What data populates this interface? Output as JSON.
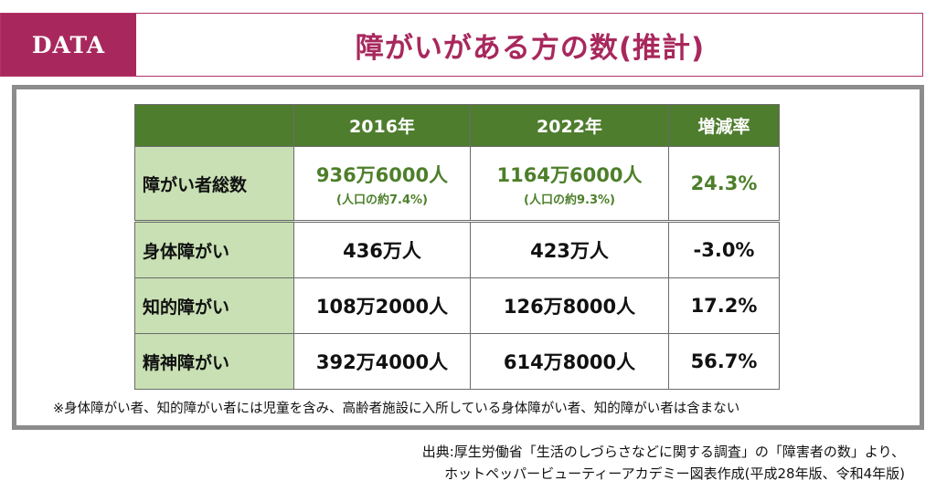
{
  "header": {
    "badge": "DATA",
    "title": "障がいがある方の数(推計)"
  },
  "table": {
    "columns": [
      "",
      "2016年",
      "2022年",
      "増減率"
    ],
    "total": {
      "label": "障がい者総数",
      "v2016": "936万6000人",
      "n2016": "(人口の約7.4%)",
      "v2022": "1164万6000人",
      "n2022": "(人口の約9.3%)",
      "rate": "24.3%"
    },
    "rows": [
      {
        "label": "身体障がい",
        "v2016": "436万人",
        "v2022": "423万人",
        "rate": "-3.0%"
      },
      {
        "label": "知的障がい",
        "v2016": "108万2000人",
        "v2022": "126万8000人",
        "rate": "17.2%"
      },
      {
        "label": "精神障がい",
        "v2016": "392万4000人",
        "v2022": "614万8000人",
        "rate": "56.7%"
      }
    ]
  },
  "footnote": "※身体障がい者、知的障がい者には児童を含み、高齢者施設に入所している身体障がい者、知的障がい者は含まない",
  "source": {
    "line1": "出典:厚生労働省「生活のしづらさなどに関する調査」の「障害者の数」より、",
    "line2": "ホットペッパービューティーアカデミー図表作成(平成28年版、令和4年版)"
  },
  "colors": {
    "accent": "#a8285d",
    "header_green": "#4e7d2e",
    "label_green": "#c8e0b3",
    "value_green": "#4d7f2a"
  }
}
